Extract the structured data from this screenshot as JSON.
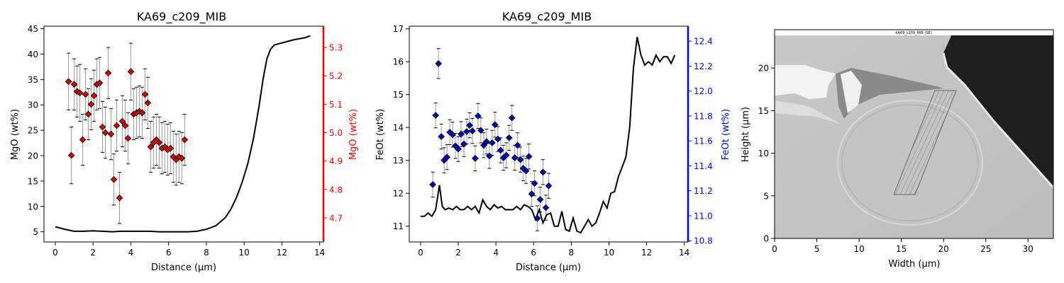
{
  "colors": {
    "line": "#000000",
    "mgo_axis": "#ff0000",
    "mgo_marker": "#dd0000",
    "feo_axis": "#0000ff",
    "feo_marker": "#0000cc",
    "errorbar": "#999999"
  },
  "chart_data": [
    {
      "type": "line+scatter",
      "title": "KA69_c209_MIB",
      "xlabel": "Distance (µm)",
      "ylabel": "MgO (wt%)",
      "ylabel_right": "MgO (wt%)",
      "xlim": [
        -0.6,
        14.2
      ],
      "ylim": [
        3.0,
        45.5
      ],
      "ylim_right": [
        4.615,
        5.375
      ],
      "xticks": [
        0,
        2,
        4,
        6,
        8,
        10,
        12,
        14
      ],
      "yticks": [
        5,
        10,
        15,
        20,
        25,
        30,
        35,
        40,
        45
      ],
      "yticks_right": [
        4.7,
        4.8,
        4.9,
        5.0,
        5.1,
        5.2,
        5.3
      ],
      "line": {
        "x": [
          0,
          0.5,
          1,
          1.5,
          2,
          2.5,
          3,
          3.5,
          4,
          4.5,
          5,
          5.5,
          6,
          6.5,
          7,
          7.5,
          8,
          8.5,
          9,
          9.3,
          9.6,
          9.9,
          10.2,
          10.5,
          10.8,
          11.0,
          11.2,
          11.4,
          11.6,
          11.8,
          12.0,
          12.3,
          12.6,
          12.9,
          13.2,
          13.5
        ],
        "y": [
          6.0,
          5.5,
          5.1,
          5.1,
          5.2,
          5.1,
          5.0,
          5.1,
          5.1,
          5.1,
          5.1,
          5.0,
          5.0,
          5.0,
          5.0,
          5.1,
          5.5,
          6.2,
          7.8,
          9.5,
          11.8,
          14.8,
          18.5,
          23.5,
          30.0,
          35.0,
          39.0,
          41.0,
          41.8,
          42.0,
          42.2,
          42.5,
          42.8,
          43.0,
          43.2,
          43.6
        ]
      },
      "points": {
        "x": [
          0.7,
          0.85,
          1.0,
          1.15,
          1.3,
          1.45,
          1.6,
          1.75,
          1.9,
          2.05,
          2.2,
          2.35,
          2.5,
          2.65,
          2.8,
          2.95,
          3.1,
          3.25,
          3.4,
          3.55,
          3.7,
          3.85,
          4.0,
          4.15,
          4.3,
          4.45,
          4.6,
          4.75,
          4.9,
          5.05,
          5.2,
          5.35,
          5.5,
          5.65,
          5.8,
          5.95,
          6.1,
          6.25,
          6.4,
          6.55,
          6.7,
          6.85
        ],
        "y": [
          5.18,
          4.92,
          5.17,
          5.145,
          5.14,
          4.975,
          5.135,
          5.065,
          5.1,
          5.13,
          5.17,
          5.175,
          5.02,
          5.0,
          5.21,
          4.995,
          4.835,
          5.025,
          4.77,
          5.04,
          5.025,
          4.98,
          5.215,
          5.065,
          5.07,
          5.075,
          5.07,
          5.135,
          5.105,
          4.95,
          4.965,
          4.975,
          4.965,
          4.945,
          4.95,
          4.94,
          4.945,
          4.915,
          4.905,
          4.915,
          4.91,
          4.975
        ],
        "err": [
          0.1,
          0.1,
          0.09,
          0.09,
          0.1,
          0.09,
          0.09,
          0.09,
          0.09,
          0.09,
          0.09,
          0.09,
          0.09,
          0.09,
          0.09,
          0.09,
          0.09,
          0.09,
          0.09,
          0.09,
          0.09,
          0.09,
          0.1,
          0.09,
          0.09,
          0.09,
          0.09,
          0.09,
          0.09,
          0.09,
          0.09,
          0.09,
          0.09,
          0.09,
          0.09,
          0.09,
          0.09,
          0.09,
          0.09,
          0.09,
          0.09,
          0.09
        ]
      }
    },
    {
      "type": "line+scatter",
      "title": "KA69_c209_MIB",
      "xlabel": "Distance (µm)",
      "ylabel": "FeOt (wt%)",
      "ylabel_right": "FeOt (wt%)",
      "xlim": [
        -0.6,
        14.2
      ],
      "ylim": [
        10.52,
        17.08
      ],
      "ylim_right": [
        10.79,
        12.52
      ],
      "xticks": [
        0,
        2,
        4,
        6,
        8,
        10,
        12,
        14
      ],
      "yticks": [
        11,
        12,
        13,
        14,
        15,
        16,
        17
      ],
      "yticks_right": [
        10.8,
        11.0,
        11.2,
        11.4,
        11.6,
        11.8,
        12.0,
        12.2,
        12.4
      ],
      "line": {
        "x": [
          0,
          0.2,
          0.4,
          0.6,
          0.8,
          1.0,
          1.15,
          1.3,
          1.5,
          1.7,
          1.9,
          2.1,
          2.3,
          2.5,
          2.7,
          2.9,
          3.1,
          3.3,
          3.5,
          3.7,
          3.9,
          4.1,
          4.3,
          4.5,
          4.7,
          4.9,
          5.1,
          5.3,
          5.5,
          5.7,
          5.9,
          6.1,
          6.3,
          6.5,
          6.7,
          6.9,
          7.1,
          7.3,
          7.5,
          7.7,
          7.9,
          8.1,
          8.3,
          8.5,
          8.7,
          8.9,
          9.1,
          9.3,
          9.5,
          9.7,
          9.9,
          10.1,
          10.3,
          10.5,
          10.7,
          10.9,
          11.1,
          11.3,
          11.5,
          11.7,
          11.9,
          12.1,
          12.3,
          12.5,
          12.7,
          12.9,
          13.1,
          13.3,
          13.5
        ],
        "y": [
          11.3,
          11.3,
          11.4,
          11.3,
          11.5,
          12.25,
          11.6,
          11.5,
          11.55,
          11.5,
          11.6,
          11.5,
          11.5,
          11.6,
          11.5,
          11.6,
          11.4,
          11.8,
          11.6,
          11.5,
          11.65,
          11.55,
          11.6,
          11.5,
          11.5,
          11.5,
          11.6,
          11.5,
          11.65,
          11.6,
          11.5,
          11.2,
          11.5,
          11.1,
          11.35,
          11.4,
          11.0,
          11.0,
          11.45,
          10.9,
          10.85,
          11.25,
          10.85,
          10.8,
          11.0,
          11.2,
          11.0,
          11.1,
          11.4,
          11.75,
          11.55,
          12.0,
          12.05,
          12.5,
          12.8,
          13.1,
          14.0,
          15.8,
          16.75,
          16.2,
          15.9,
          16.0,
          15.9,
          16.2,
          16.0,
          16.15,
          16.15,
          15.95,
          16.2
        ]
      },
      "points": {
        "x": [
          0.65,
          0.8,
          0.95,
          1.1,
          1.25,
          1.4,
          1.55,
          1.7,
          1.85,
          2.0,
          2.15,
          2.3,
          2.45,
          2.6,
          2.75,
          2.9,
          3.05,
          3.2,
          3.35,
          3.5,
          3.65,
          3.8,
          3.95,
          4.1,
          4.25,
          4.4,
          4.55,
          4.7,
          4.85,
          5.0,
          5.15,
          5.3,
          5.45,
          5.6,
          5.75,
          5.9,
          6.05,
          6.2,
          6.35,
          6.5,
          6.65,
          6.8
        ],
        "y": [
          11.25,
          11.805,
          12.22,
          11.635,
          11.445,
          11.47,
          11.67,
          11.65,
          11.56,
          11.535,
          11.655,
          11.575,
          11.675,
          11.725,
          11.68,
          11.46,
          11.8,
          11.685,
          11.565,
          11.595,
          11.48,
          11.585,
          11.73,
          11.615,
          11.525,
          11.465,
          11.485,
          11.625,
          11.785,
          11.465,
          11.565,
          11.45,
          11.38,
          11.36,
          11.475,
          11.175,
          11.26,
          10.98,
          11.13,
          11.35,
          11.065,
          11.24
        ],
        "err": [
          0.1,
          0.1,
          0.12,
          0.1,
          0.1,
          0.1,
          0.1,
          0.1,
          0.1,
          0.1,
          0.1,
          0.1,
          0.1,
          0.1,
          0.1,
          0.1,
          0.1,
          0.1,
          0.1,
          0.1,
          0.1,
          0.1,
          0.1,
          0.1,
          0.1,
          0.1,
          0.1,
          0.1,
          0.1,
          0.1,
          0.1,
          0.1,
          0.1,
          0.1,
          0.1,
          0.1,
          0.1,
          0.1,
          0.1,
          0.1,
          0.1,
          0.1
        ]
      }
    },
    {
      "type": "image",
      "image_title": "KA69_c209_MIB (SE)",
      "xlabel": "Width (µm)",
      "ylabel": "Height (µm)",
      "xlim": [
        0,
        33
      ],
      "ylim": [
        0,
        24.5
      ],
      "xticks": [
        0,
        5,
        10,
        15,
        20,
        25,
        30
      ],
      "yticks": [
        0,
        5,
        10,
        15,
        20
      ]
    }
  ]
}
